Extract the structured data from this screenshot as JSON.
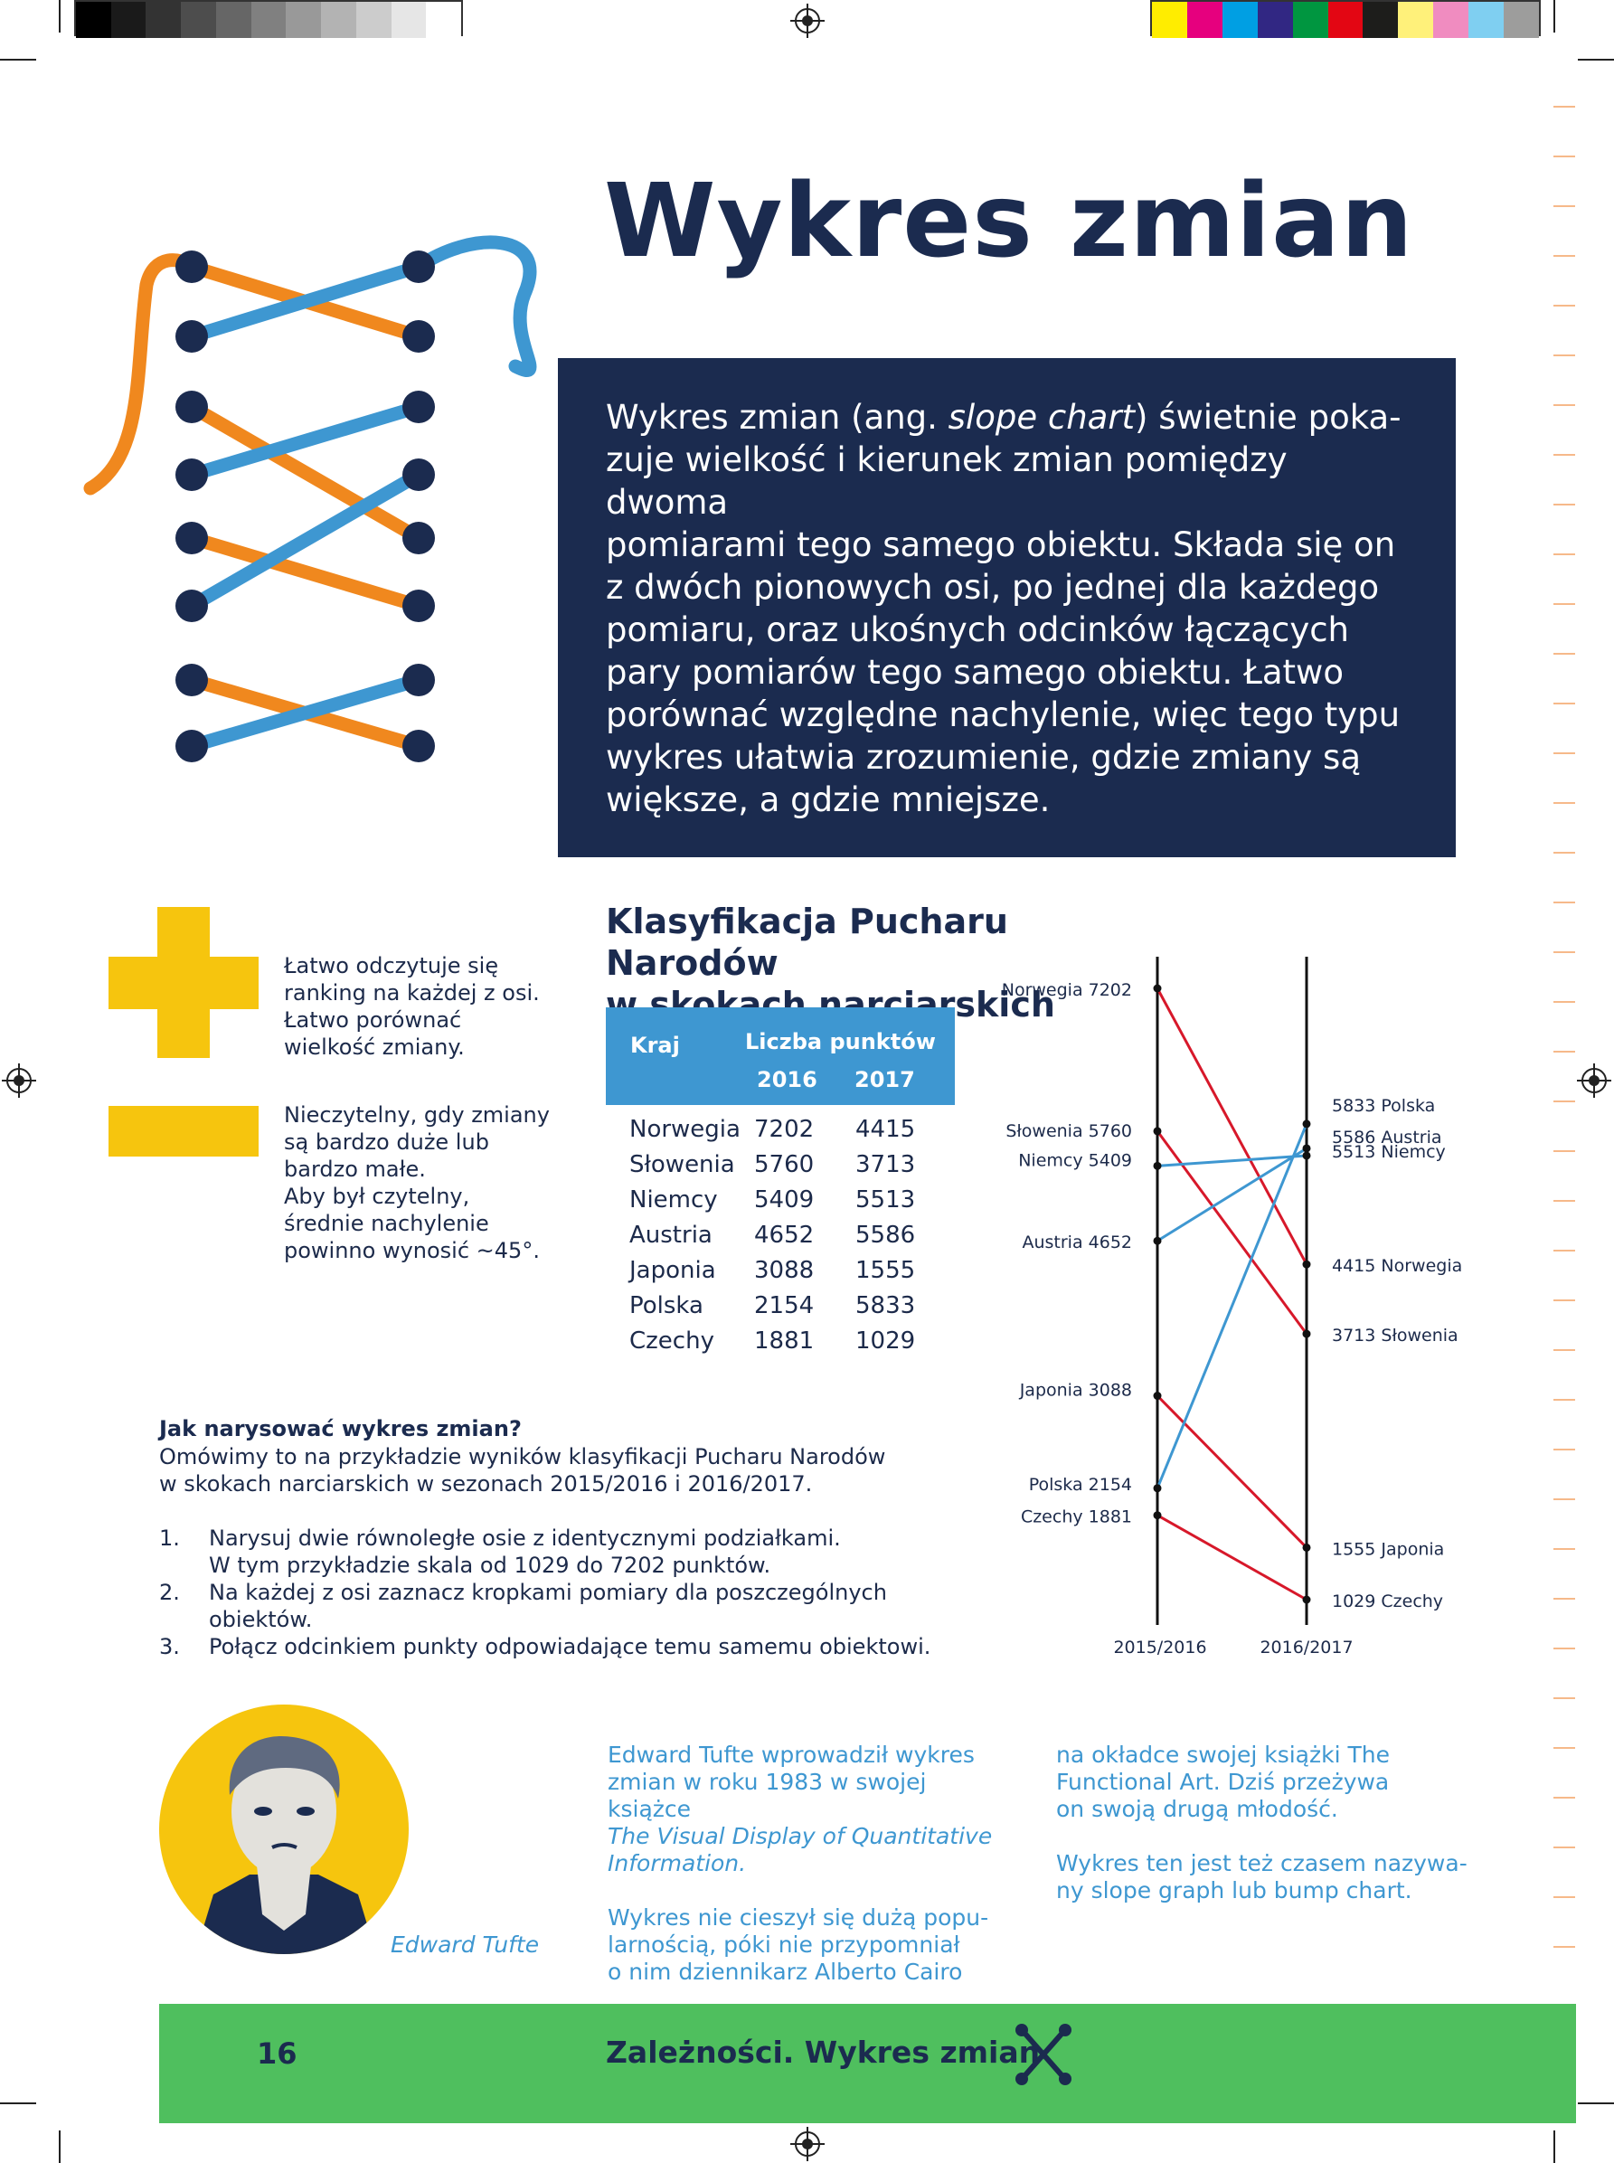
{
  "colors": {
    "navy": "#1b2b4f",
    "blue": "#3e97d1",
    "orange": "#f0881e",
    "red": "#d7182a",
    "yellow": "#f6c50e",
    "green": "#4fbf5e"
  },
  "page": {
    "title": "Wykres zmian",
    "intro_lines": [
      "Wykres zmian (ang. ",
      "slope chart",
      ") świetnie poka-",
      "zuje wielkość i kierunek zmian pomiędzy dwoma",
      "pomiarami tego samego obiektu. Składa się on",
      "z dwóch pionowych osi, po jednej dla każdego",
      "pomiaru, oraz ukośnych odcinków łączących",
      "pary pomiarów tego samego obiektu. Łatwo",
      "porównać względne nachylenie, więc tego typu",
      "wykres ułatwia zrozumienie, gdzie zmiany są",
      "większe, a gdzie mniejsze."
    ],
    "plus_lines": [
      "Łatwo odczytuje się",
      "ranking na każdej z osi.",
      "Łatwo porównać",
      "wielkość zmiany."
    ],
    "minus_lines": [
      "Nieczytelny, gdy zmiany",
      "są bardzo duże lub",
      "bardzo małe.",
      "Aby był czytelny,",
      "średnie nachylenie",
      "powinno wynosić ~45°."
    ]
  },
  "table": {
    "title_lines": [
      "Klasyfikacja Pucharu Narodów",
      "w skokach narciarskich"
    ],
    "col_country": "Kraj",
    "col_points": "Liczba punktów",
    "col_2016": "2016",
    "col_2017": "2017",
    "rows": [
      {
        "country": "Norwegia",
        "v2016": "7202",
        "v2017": "4415"
      },
      {
        "country": "Słowenia",
        "v2016": "5760",
        "v2017": "3713"
      },
      {
        "country": "Niemcy",
        "v2016": "5409",
        "v2017": "5513"
      },
      {
        "country": "Austria",
        "v2016": "4652",
        "v2017": "5586"
      },
      {
        "country": "Japonia",
        "v2016": "3088",
        "v2017": "1555"
      },
      {
        "country": "Polska",
        "v2016": "2154",
        "v2017": "5833"
      },
      {
        "country": "Czechy",
        "v2016": "1881",
        "v2017": "1029"
      }
    ]
  },
  "chart_data": {
    "type": "line",
    "x": [
      "2015/2016",
      "2016/2017"
    ],
    "ylim": [
      1029,
      7202
    ],
    "series": [
      {
        "name": "Norwegia",
        "values": [
          7202,
          4415
        ],
        "color": "#d7182a"
      },
      {
        "name": "Słowenia",
        "values": [
          5760,
          3713
        ],
        "color": "#d7182a"
      },
      {
        "name": "Niemcy",
        "values": [
          5409,
          5513
        ],
        "color": "#3e97d1"
      },
      {
        "name": "Austria",
        "values": [
          4652,
          5586
        ],
        "color": "#3e97d1"
      },
      {
        "name": "Japonia",
        "values": [
          3088,
          1555
        ],
        "color": "#d7182a"
      },
      {
        "name": "Polska",
        "values": [
          2154,
          5833
        ],
        "color": "#3e97d1"
      },
      {
        "name": "Czechy",
        "values": [
          1881,
          1029
        ],
        "color": "#d7182a"
      }
    ],
    "grid": false
  },
  "howto": {
    "heading": "Jak narysować wykres zmian?",
    "intro_lines": [
      "Omówimy to na przykładzie wyników klasyfikacji Pucharu Narodów",
      "w skokach narciarskich w sezonach 2015/2016 i 2016/2017."
    ],
    "steps": [
      {
        "num": "1.",
        "lines": [
          "Narysuj dwie równoległe osie z identycznymi podziałkami.",
          "W tym przykładzie skala od 1029 do 7202 punktów."
        ]
      },
      {
        "num": "2.",
        "lines": [
          "Na każdej z osi zaznacz kropkami pomiary dla poszczególnych",
          "obiektów."
        ]
      },
      {
        "num": "3.",
        "lines": [
          "Połącz odcinkiem punkty odpowiadające temu samemu obiektowi."
        ]
      }
    ]
  },
  "tufte": {
    "caption": "Edward Tufte",
    "col1": [
      "Edward Tufte wprowadził wykres",
      "zmian w roku 1983 w swojej książce",
      "The Visual Display of Quantitative",
      "Information.",
      "",
      "Wykres nie cieszył się dużą popu-",
      "larnością, póki nie przypomniał",
      "o nim dziennikarz Alberto Cairo"
    ],
    "col2": [
      "na okładce swojej książki The",
      "Functional Art. Dziś przeżywa",
      "on swoją drugą młodość.",
      "",
      "Wykres ten jest też czasem nazywa-",
      "ny slope graph lub bump chart."
    ]
  },
  "footer": {
    "page_number": "16",
    "title": "Zależności. Wykres zmian"
  },
  "icons": [
    "lacing-illustration",
    "registration-mark-icon",
    "crossed-shoe-lace-icon",
    "tufte-portrait"
  ]
}
